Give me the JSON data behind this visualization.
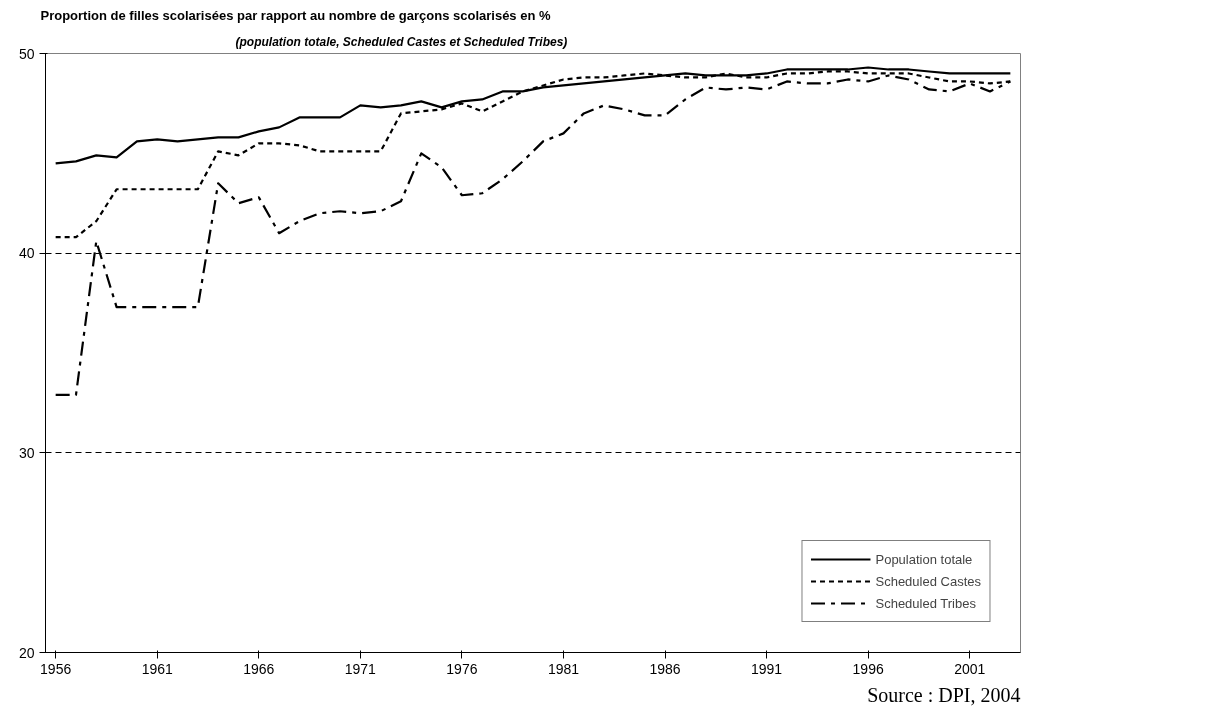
{
  "chart_data": {
    "type": "line",
    "title": "Proportion de filles scolarisées par rapport au nombre de garçons scolarisés en %",
    "subtitle": "(population totale, Scheduled Castes et Scheduled Tribes)",
    "x": [
      1956,
      1957,
      1958,
      1959,
      1960,
      1961,
      1962,
      1963,
      1964,
      1965,
      1966,
      1967,
      1968,
      1969,
      1970,
      1971,
      1972,
      1973,
      1974,
      1975,
      1976,
      1977,
      1978,
      1979,
      1980,
      1981,
      1982,
      1983,
      1984,
      1985,
      1986,
      1987,
      1988,
      1989,
      1990,
      1991,
      1992,
      1993,
      1994,
      1995,
      1996,
      1997,
      1998,
      1999,
      2000,
      2001,
      2002,
      2003
    ],
    "series": [
      {
        "name": "Population totale",
        "color": "#000000",
        "line_style": "solid",
        "values": [
          44.5,
          44.6,
          44.9,
          44.8,
          45.6,
          45.7,
          45.6,
          45.7,
          45.8,
          45.8,
          46.1,
          46.3,
          46.8,
          46.8,
          46.8,
          47.4,
          47.3,
          47.4,
          47.6,
          47.3,
          47.6,
          47.7,
          48.1,
          48.1,
          48.3,
          48.4,
          48.5,
          48.6,
          48.7,
          48.8,
          48.9,
          49.0,
          48.9,
          48.9,
          48.9,
          49.0,
          49.2,
          49.2,
          49.2,
          49.2,
          49.3,
          49.2,
          49.2,
          49.1,
          49.0,
          49.0,
          49.0,
          49.0
        ]
      },
      {
        "name": "Scheduled Castes",
        "color": "#000000",
        "line_style": "dotted",
        "values": [
          40.8,
          40.8,
          41.6,
          43.2,
          43.2,
          43.2,
          43.2,
          43.2,
          45.1,
          44.9,
          45.5,
          45.5,
          45.4,
          45.1,
          45.1,
          45.1,
          45.1,
          47.0,
          47.1,
          47.2,
          47.5,
          47.1,
          47.6,
          48.1,
          48.4,
          48.7,
          48.8,
          48.8,
          48.9,
          49.0,
          48.9,
          48.8,
          48.8,
          49.0,
          48.8,
          48.8,
          49.0,
          49.0,
          49.1,
          49.1,
          49.0,
          49.0,
          49.0,
          48.8,
          48.6,
          48.6,
          48.5,
          48.6
        ]
      },
      {
        "name": "Scheduled Tribes",
        "color": "#000000",
        "line_style": "dashed",
        "values": [
          32.9,
          32.9,
          40.6,
          37.3,
          37.3,
          37.3,
          37.3,
          37.3,
          43.5,
          42.5,
          42.8,
          41.0,
          41.6,
          42.0,
          42.1,
          42.0,
          42.1,
          42.6,
          45.0,
          44.3,
          42.9,
          43.0,
          43.7,
          44.6,
          45.6,
          46.0,
          47.0,
          47.4,
          47.2,
          46.9,
          46.9,
          47.7,
          48.3,
          48.2,
          48.3,
          48.2,
          48.6,
          48.5,
          48.5,
          48.7,
          48.6,
          48.9,
          48.7,
          48.2,
          48.1,
          48.5,
          48.1,
          48.6
        ]
      }
    ],
    "xlim": [
      1955.5,
      2003.5
    ],
    "xticks": [
      1956,
      1961,
      1966,
      1971,
      1976,
      1981,
      1986,
      1991,
      1996,
      2001
    ],
    "ylim": [
      20,
      50
    ],
    "yticks": [
      20,
      30,
      40,
      50
    ],
    "grid": "y",
    "legend": "bottom right",
    "annotations": [
      "Source : DPI, 2004"
    ]
  }
}
